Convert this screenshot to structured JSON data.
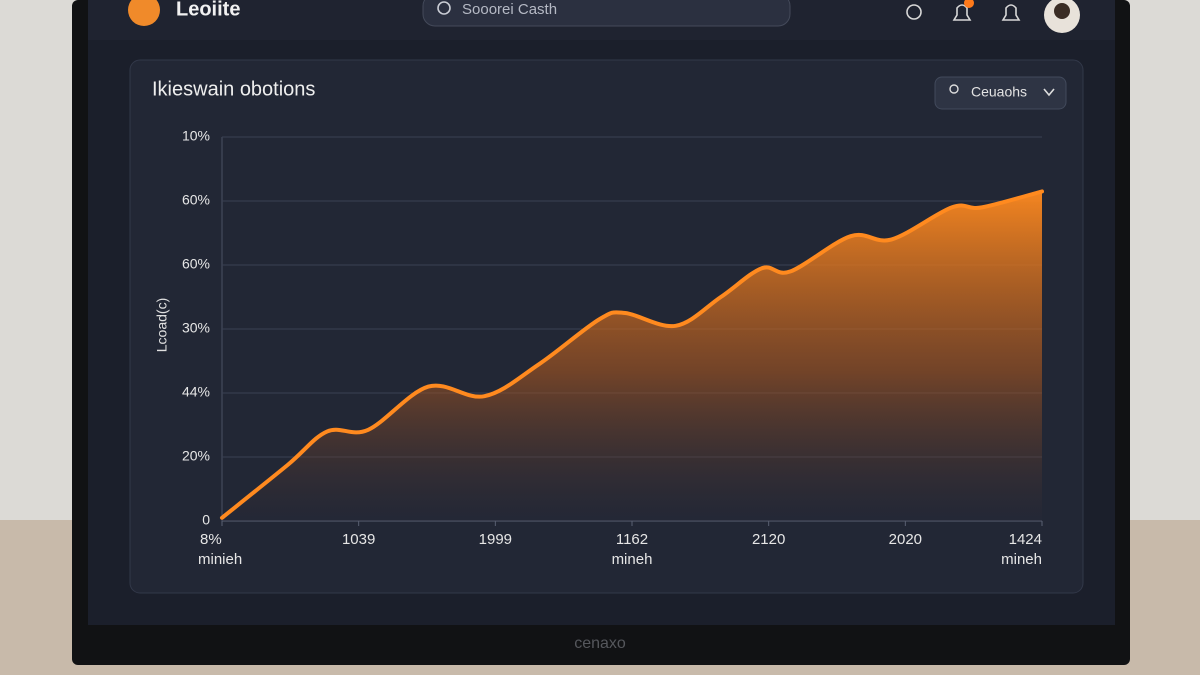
{
  "header": {
    "logo": "Leoiite",
    "search_placeholder": "Sooorei Casth"
  },
  "monitor_brand": "cenaxo",
  "chart_data": {
    "type": "area",
    "title": "Ikieswain obotions",
    "dropdown": "Ceuaohs",
    "y_label": "Lcoad(c)",
    "color": "#ff8a1f",
    "x": [
      0,
      0.48,
      0.77,
      1.07,
      1.51,
      1.92,
      2.32,
      2.76,
      2.95,
      3.32,
      3.65,
      3.95,
      4.16,
      4.6,
      4.9,
      5.34,
      5.56,
      6
    ],
    "values": [
      1,
      17.5,
      28,
      28.5,
      42,
      39,
      49,
      63,
      65,
      61,
      70,
      79,
      78,
      89,
      88,
      98,
      98,
      103
    ],
    "xlim": [
      0,
      6
    ],
    "xticks": [
      {
        "value": 0,
        "label": "8%"
      },
      {
        "value": 1,
        "label": "1039"
      },
      {
        "value": 2,
        "label": "1999"
      },
      {
        "value": 3,
        "label": "1162"
      },
      {
        "value": 4,
        "label": "2120"
      },
      {
        "value": 5,
        "label": "2020"
      },
      {
        "value": 6,
        "label": "1424"
      }
    ],
    "xtick_sublabels": [
      "minieh",
      null,
      null,
      "mineh",
      null,
      null,
      "mineh"
    ],
    "ylim": [
      0,
      120
    ],
    "yticks": [
      0,
      {
        "value": 20,
        "label": "20%"
      },
      {
        "value": 40,
        "label": "44%"
      },
      {
        "value": 60,
        "label": "30%"
      },
      {
        "value": 80,
        "label": "60%"
      },
      {
        "value": 100,
        "label": "60%"
      },
      {
        "value": 120,
        "label": "10%"
      }
    ],
    "grid": true
  }
}
